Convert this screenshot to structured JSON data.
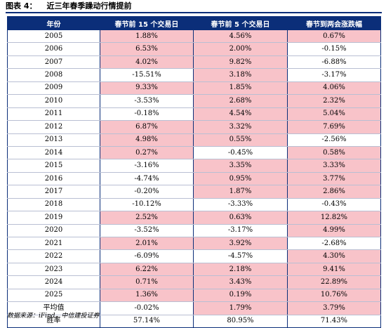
{
  "figure": {
    "label": "图表 4：",
    "title": "近三年春季躁动行情提前"
  },
  "table": {
    "headers": [
      "年份",
      "春节前 15 个交易日",
      "春节前 5 个交易日",
      "春节到两会涨跌幅"
    ],
    "rows": [
      {
        "year": "2005",
        "a": "1.88%",
        "b": "4.56%",
        "c": "0.67%"
      },
      {
        "year": "2006",
        "a": "6.53%",
        "b": "2.00%",
        "c": "-0.15%"
      },
      {
        "year": "2007",
        "a": "4.02%",
        "b": "9.82%",
        "c": "-6.88%"
      },
      {
        "year": "2008",
        "a": "-15.51%",
        "b": "3.18%",
        "c": "-3.17%"
      },
      {
        "year": "2009",
        "a": "9.33%",
        "b": "1.85%",
        "c": "4.06%"
      },
      {
        "year": "2010",
        "a": "-3.53%",
        "b": "2.68%",
        "c": "2.32%"
      },
      {
        "year": "2011",
        "a": "-0.18%",
        "b": "4.54%",
        "c": "5.04%"
      },
      {
        "year": "2012",
        "a": "6.87%",
        "b": "3.32%",
        "c": "7.69%"
      },
      {
        "year": "2013",
        "a": "4.98%",
        "b": "0.55%",
        "c": "-2.56%"
      },
      {
        "year": "2014",
        "a": "0.27%",
        "b": "-0.45%",
        "c": "0.58%"
      },
      {
        "year": "2015",
        "a": "-3.16%",
        "b": "3.35%",
        "c": "3.33%"
      },
      {
        "year": "2016",
        "a": "-4.74%",
        "b": "0.95%",
        "c": "3.77%"
      },
      {
        "year": "2017",
        "a": "-0.20%",
        "b": "1.87%",
        "c": "2.86%"
      },
      {
        "year": "2018",
        "a": "-10.12%",
        "b": "-3.33%",
        "c": "-0.43%"
      },
      {
        "year": "2019",
        "a": "2.52%",
        "b": "0.63%",
        "c": "12.82%"
      },
      {
        "year": "2020",
        "a": "-3.52%",
        "b": "-3.17%",
        "c": "4.99%"
      },
      {
        "year": "2021",
        "a": "2.01%",
        "b": "3.92%",
        "c": "-2.68%"
      },
      {
        "year": "2022",
        "a": "-6.09%",
        "b": "-4.57%",
        "c": "4.30%"
      },
      {
        "year": "2023",
        "a": "6.22%",
        "b": "2.18%",
        "c": "9.41%"
      },
      {
        "year": "2024",
        "a": "0.71%",
        "b": "3.43%",
        "c": "22.89%"
      },
      {
        "year": "2025",
        "a": "1.36%",
        "b": "0.19%",
        "c": "10.76%"
      },
      {
        "year": "平均值",
        "a": "-0.02%",
        "b": "1.79%",
        "c": "3.79%"
      },
      {
        "year": "胜率",
        "a": "57.14%",
        "b": "80.95%",
        "c": "71.43%"
      }
    ]
  },
  "source": "数据来源：iFind，中信建投证券",
  "colors": {
    "header_bg": "#0b2e79",
    "positive_highlight": "#f8c3c9"
  }
}
